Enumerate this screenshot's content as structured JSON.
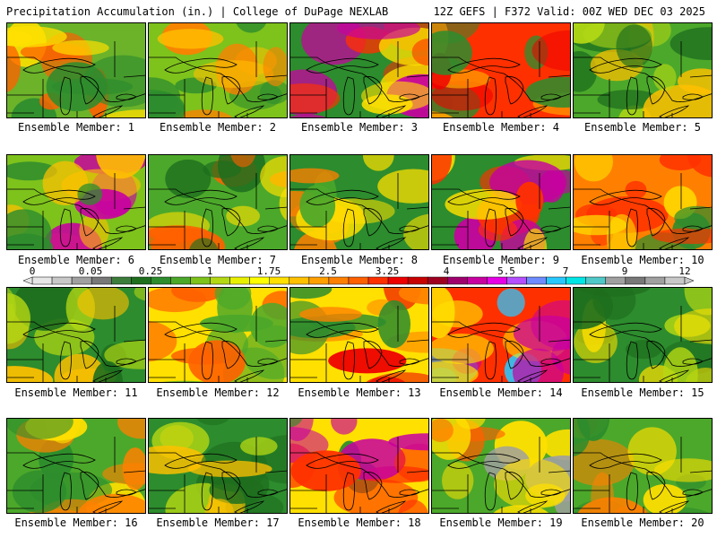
{
  "header": {
    "title": "Precipitation Accumulation (in.) | College of DuPage NEXLAB",
    "run_info": "12Z GEFS | F372 Valid: 00Z WED DEC 03 2025"
  },
  "member_label_prefix": "Ensemble Member: ",
  "members": [
    {
      "label": "Ensemble Member: 1"
    },
    {
      "label": "Ensemble Member: 2"
    },
    {
      "label": "Ensemble Member: 3"
    },
    {
      "label": "Ensemble Member: 4"
    },
    {
      "label": "Ensemble Member: 5"
    },
    {
      "label": "Ensemble Member: 6"
    },
    {
      "label": "Ensemble Member: 7"
    },
    {
      "label": "Ensemble Member: 8"
    },
    {
      "label": "Ensemble Member: 9"
    },
    {
      "label": "Ensemble Member: 10"
    },
    {
      "label": "Ensemble Member: 11"
    },
    {
      "label": "Ensemble Member: 12"
    },
    {
      "label": "Ensemble Member: 13"
    },
    {
      "label": "Ensemble Member: 14"
    },
    {
      "label": "Ensemble Member: 15"
    },
    {
      "label": "Ensemble Member: 16"
    },
    {
      "label": "Ensemble Member: 17"
    },
    {
      "label": "Ensemble Member: 18"
    },
    {
      "label": "Ensemble Member: 19"
    },
    {
      "label": "Ensemble Member: 20"
    }
  ],
  "colorbar": {
    "tick_labels": [
      "0",
      "0.05",
      "0.25",
      "1",
      "1.75",
      "2.5",
      "3.25",
      "4",
      "5.5",
      "7",
      "9",
      "12"
    ],
    "colors": [
      "#e6e6e6",
      "#c8c8c8",
      "#a0a0a0",
      "#787878",
      "#3c7d3c",
      "#1e6e1e",
      "#2d8c2d",
      "#4ca82a",
      "#7ec21c",
      "#b4d814",
      "#e8f000",
      "#ffff00",
      "#ffe000",
      "#ffc000",
      "#ffa000",
      "#ff8000",
      "#ff6000",
      "#ff3000",
      "#ee0000",
      "#c80000",
      "#a00020",
      "#a0006e",
      "#c800a0",
      "#e600e6",
      "#b450ff",
      "#6e8cff",
      "#28c8ff",
      "#00e6e6",
      "#50c8c8",
      "#a0a0a0",
      "#787878",
      "#a0a0a0",
      "#c8c8c8"
    ]
  }
}
